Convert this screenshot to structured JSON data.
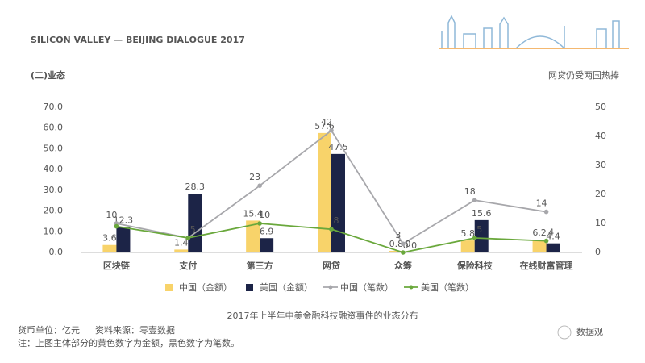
{
  "header": {
    "brand": "SILICON VALLEY — BEIJING DIALOGUE 2017",
    "section": "(二)业态",
    "headline": "网贷仍受两国热捧"
  },
  "chart_data": {
    "type": "bar",
    "caption": "2017年上半年中美金融科技融资事件的业态分布",
    "categories": [
      "区块链",
      "支付",
      "第三方",
      "网贷",
      "众筹",
      "保险科技",
      "在线财富管理"
    ],
    "series": [
      {
        "name": "中国（金额）",
        "type": "bar",
        "color": "#f8d36a",
        "values": [
          3.6,
          1.4,
          15.4,
          57.6,
          0.8,
          5.8,
          6.2
        ]
      },
      {
        "name": "美国（金额）",
        "type": "bar",
        "color": "#1c2447",
        "values": [
          12.3,
          28.3,
          6.9,
          47.5,
          0,
          15.6,
          4.4
        ],
        "value_labels": [
          "12.3",
          "28.3",
          "6.9",
          "47.5",
          "0.0",
          "15.6",
          "4.4"
        ]
      },
      {
        "name": "中国（笔数）",
        "type": "line",
        "axis": "y2",
        "color": "#a7a7ab",
        "values": [
          10,
          5,
          23,
          42,
          3,
          18,
          14
        ],
        "value_labels": [
          "10",
          null,
          "23",
          "42",
          "3",
          "18",
          "14"
        ]
      },
      {
        "name": "美国（笔数）",
        "type": "line",
        "axis": "y2",
        "color": "#6aa83c",
        "values": [
          9,
          5,
          10,
          8,
          0,
          5,
          4
        ],
        "value_labels": [
          null,
          "5",
          "10",
          "8",
          "0",
          "5",
          "4"
        ]
      }
    ],
    "ylim": [
      0,
      70
    ],
    "yticks": [
      {
        "value": 0,
        "label": "0.0"
      },
      {
        "value": 10,
        "label": "10.0"
      },
      {
        "value": 20,
        "label": "20.0"
      },
      {
        "value": 30,
        "label": "30.0"
      },
      {
        "value": 40,
        "label": "40.0"
      },
      {
        "value": 50,
        "label": "50.0"
      },
      {
        "value": 60,
        "label": "60.0"
      },
      {
        "value": 70,
        "label": "70.0"
      }
    ],
    "y2lim": [
      0,
      50
    ],
    "y2ticks": [
      0,
      10,
      20,
      30,
      40,
      50
    ],
    "legend": "bottom",
    "grid": false
  },
  "notes": {
    "unit": "货币单位：亿元",
    "source": "资料来源：零壹数据",
    "remark": "注：上图主体部分的黄色数字为金额，黑色数字为笔数。"
  },
  "watermark": "数据观"
}
